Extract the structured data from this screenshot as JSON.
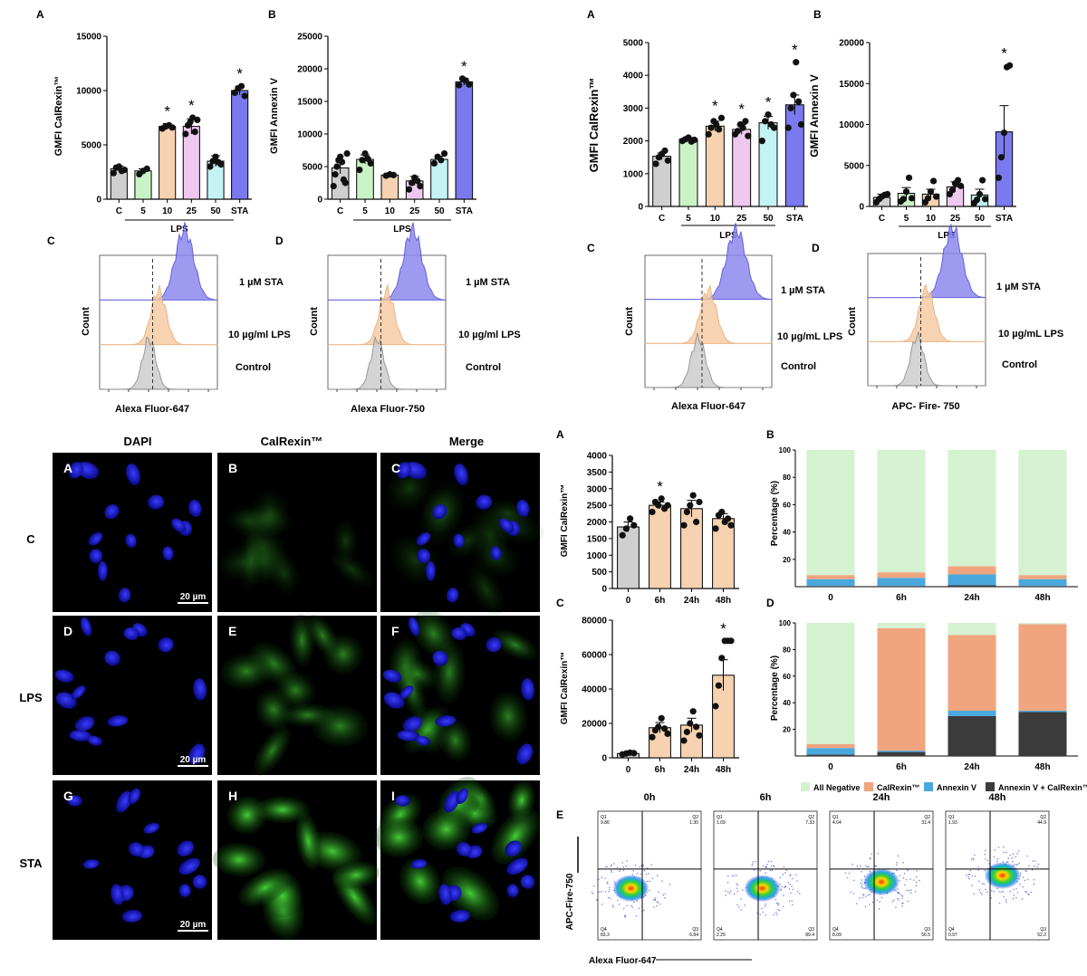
{
  "colors": {
    "c_gray": "#cfcfcf",
    "lps5": "#c9f2c5",
    "lps10": "#f7d2b0",
    "lps25": "#eec8ef",
    "lps50": "#c4f3f3",
    "sta": "#7b79ee",
    "stack_neg": "#d4f1d0",
    "stack_cal": "#f0a57f",
    "stack_annex": "#4aa8dd",
    "stack_double": "#3b3b3b",
    "hist_sta": "#8d89ee",
    "hist_lps": "#f7c99e",
    "hist_ctrl": "#cdcdcd"
  },
  "group_labels": {
    "lps": "LPS",
    "star": "*",
    "sig": "*"
  },
  "chart_data": [
    {
      "id": "p1A",
      "panel": "A",
      "type": "bar",
      "ylabel": "GMFI CalRexin™",
      "ylim": [
        0,
        15000
      ],
      "yticks": [
        "0",
        "5000",
        "10000",
        "15000"
      ],
      "categories": [
        "C",
        "5",
        "10",
        "25",
        "50",
        "STA"
      ],
      "values": [
        2800,
        2600,
        6700,
        6700,
        3500,
        10000
      ],
      "sem": [
        250,
        200,
        250,
        700,
        500,
        400
      ],
      "points": [
        [
          2400,
          2900,
          3000,
          2600,
          2700
        ],
        [
          2300,
          2600,
          2800
        ],
        [
          6500,
          6700,
          6800,
          6600
        ],
        [
          6000,
          6800,
          7100,
          7500,
          6200,
          7300
        ],
        [
          3000,
          3500,
          3900,
          3400,
          3200
        ],
        [
          9800,
          10200,
          10400,
          9500
        ]
      ],
      "significant": [
        false,
        false,
        true,
        true,
        false,
        true
      ]
    },
    {
      "id": "p1B",
      "panel": "B",
      "type": "bar",
      "ylabel": "GMFI Annexin V",
      "ylim": [
        0,
        25000
      ],
      "yticks": [
        "0",
        "5000",
        "10000",
        "15000",
        "20000",
        "25000"
      ],
      "categories": [
        "C",
        "5",
        "10",
        "25",
        "50",
        "STA"
      ],
      "values": [
        4800,
        6100,
        3700,
        2800,
        6100,
        18000
      ],
      "sem": [
        900,
        700,
        200,
        700,
        500,
        500
      ],
      "points": [
        [
          2000,
          3800,
          5000,
          6000,
          6500,
          5700,
          3000,
          2500,
          7000
        ],
        [
          4500,
          6000,
          7000,
          6200,
          5500
        ],
        [
          3600,
          3800,
          3700
        ],
        [
          1500,
          2500,
          3300,
          2800,
          2000
        ],
        [
          5500,
          6500,
          6000,
          7000
        ],
        [
          17500,
          18500,
          18200,
          17600
        ]
      ],
      "significant": [
        false,
        false,
        false,
        false,
        false,
        true
      ]
    },
    {
      "id": "p2A",
      "panel": "A",
      "type": "bar",
      "ylabel": "GMFI CalRexin™",
      "ylim": [
        0,
        5000
      ],
      "yticks": [
        "0",
        "1000",
        "2000",
        "3000",
        "4000",
        "5000"
      ],
      "categories": [
        "C",
        "5",
        "10",
        "25",
        "50",
        "STA"
      ],
      "values": [
        1530,
        2050,
        2450,
        2350,
        2550,
        3100
      ],
      "sem": [
        100,
        50,
        150,
        150,
        200,
        300
      ],
      "points": [
        [
          1300,
          1500,
          1600,
          1700,
          1400
        ],
        [
          2000,
          2050,
          2100,
          1980,
          2030
        ],
        [
          2200,
          2400,
          2600,
          2500,
          2350,
          2700
        ],
        [
          2200,
          2300,
          2500,
          2400,
          2600,
          2150
        ],
        [
          2000,
          2600,
          2800,
          2500,
          2400
        ],
        [
          2400,
          3000,
          3400,
          4400,
          3200,
          2500
        ]
      ],
      "significant": [
        false,
        false,
        true,
        true,
        true,
        true
      ]
    },
    {
      "id": "p2B",
      "panel": "B",
      "type": "bar",
      "ylabel": "GMFI Annexin V",
      "ylim": [
        0,
        20000
      ],
      "yticks": [
        "0",
        "5000",
        "10000",
        "15000",
        "20000"
      ],
      "categories": [
        "C",
        "5",
        "10",
        "25",
        "50",
        "STA"
      ],
      "values": [
        1100,
        1600,
        1500,
        2400,
        1400,
        9100
      ],
      "sem": [
        400,
        700,
        600,
        600,
        700,
        3200
      ],
      "points": [
        [
          500,
          900,
          1200,
          1400,
          1500
        ],
        [
          600,
          900,
          1800,
          3500,
          1000
        ],
        [
          500,
          1000,
          1800,
          3100,
          1200
        ],
        [
          1500,
          2000,
          2800,
          3200,
          2500
        ],
        [
          400,
          800,
          1500,
          3200,
          900
        ],
        [
          3500,
          6000,
          9000,
          17000,
          17200
        ]
      ],
      "significant": [
        false,
        false,
        false,
        false,
        false,
        true
      ]
    },
    {
      "id": "p3A",
      "panel": "A",
      "type": "bar",
      "ylabel": "GMFI CalRexin™",
      "ylim": [
        0,
        4000
      ],
      "yticks": [
        "0",
        "500",
        "1000",
        "1500",
        "2000",
        "2500",
        "3000",
        "3500",
        "4000"
      ],
      "categories": [
        "0",
        "6h",
        "24h",
        "48h"
      ],
      "values": [
        1850,
        2500,
        2400,
        2100
      ],
      "sem": [
        150,
        100,
        250,
        150
      ],
      "points": [
        [
          1600,
          1800,
          2100,
          1900
        ],
        [
          2300,
          2600,
          2500,
          2700,
          2400,
          2500
        ],
        [
          1900,
          2300,
          2500,
          2800,
          2000,
          2600
        ],
        [
          1800,
          2200,
          2300,
          2000,
          2100,
          1900
        ]
      ],
      "significant": [
        false,
        true,
        false,
        false
      ]
    },
    {
      "id": "p3C",
      "panel": "C",
      "type": "bar",
      "ylabel": "GMFI CalRexin™",
      "ylim": [
        0,
        80000
      ],
      "yticks": [
        "0",
        "20000",
        "40000",
        "60000",
        "80000"
      ],
      "categories": [
        "0",
        "6h",
        "24h",
        "48h"
      ],
      "values": [
        2500,
        17500,
        19000,
        48000
      ],
      "sem": [
        500,
        3000,
        4000,
        9000
      ],
      "points": [
        [
          2000,
          2500,
          3000,
          2700
        ],
        [
          12000,
          16000,
          18000,
          23000,
          17000,
          14000
        ],
        [
          10000,
          15000,
          20000,
          27000,
          18000,
          13000
        ],
        [
          30000,
          42000,
          58000,
          68000,
          68000,
          68000
        ]
      ],
      "significant": [
        false,
        false,
        false,
        true
      ]
    },
    {
      "id": "p3B",
      "panel": "B",
      "type": "stacked-bar",
      "ylabel": "Percentage (%)",
      "ylim": [
        0,
        100
      ],
      "yticks": [
        "20",
        "40",
        "60",
        "80",
        "100"
      ],
      "categories": [
        "0",
        "6h",
        "24h",
        "48h"
      ],
      "series": [
        {
          "name": "Annexin V + CalRexin™",
          "values": [
            0.5,
            0.5,
            1,
            0.5
          ]
        },
        {
          "name": "Annexin V",
          "values": [
            5,
            6,
            8,
            5
          ]
        },
        {
          "name": "CalRexin™",
          "values": [
            3,
            4,
            6,
            3
          ]
        },
        {
          "name": "All Negative",
          "values": [
            91.5,
            89.5,
            85,
            91.5
          ]
        }
      ]
    },
    {
      "id": "p3D",
      "panel": "D",
      "type": "stacked-bar",
      "ylabel": "Percentage (%)",
      "ylim": [
        0,
        100
      ],
      "yticks": [
        "20",
        "40",
        "60",
        "80",
        "100"
      ],
      "categories": [
        "0",
        "6h",
        "24h",
        "48h"
      ],
      "series": [
        {
          "name": "Annexin V + CalRexin™",
          "values": [
            1,
            3,
            30,
            33
          ]
        },
        {
          "name": "Annexin V",
          "values": [
            5,
            1,
            4,
            1
          ]
        },
        {
          "name": "CalRexin™",
          "values": [
            3,
            92,
            57,
            65
          ]
        },
        {
          "name": "All Negative",
          "values": [
            91,
            4,
            9,
            1
          ]
        }
      ]
    }
  ],
  "histograms": [
    {
      "panel": "C",
      "xlabel": "Alexa Fluor-647",
      "ylabel": "Count",
      "labels": [
        "1 µM STA",
        "10 µg/ml LPS",
        "Control"
      ]
    },
    {
      "panel": "D",
      "xlabel": "Alexa Fluor-750",
      "ylabel": "Count",
      "labels": [
        "1 µM STA",
        "10 µg/ml LPS",
        "Control"
      ]
    },
    {
      "panel": "C",
      "xlabel": "Alexa Fluor-647",
      "ylabel": "Count",
      "labels": [
        "1 µM STA",
        "10 µg/mL LPS",
        "Control"
      ]
    },
    {
      "panel": "D",
      "xlabel": "APC- Fire- 750",
      "ylabel": "Count",
      "labels": [
        "1 µM STA",
        "10 µg/mL LPS",
        "Control"
      ]
    }
  ],
  "legend": [
    "All Negative",
    "CalRexin™",
    "Annexin V",
    "Annexin V + CalRexin™"
  ],
  "microscopy": {
    "columns": [
      "DAPI",
      "CalRexin™",
      "Merge"
    ],
    "rows": [
      "C",
      "LPS",
      "STA"
    ],
    "tiles": [
      "A",
      "B",
      "C",
      "D",
      "E",
      "F",
      "G",
      "H",
      "I"
    ],
    "scale_bar": "20 µm"
  },
  "flow": {
    "panel": "E",
    "titles": [
      "0h",
      "6h",
      "24h",
      "48h"
    ],
    "xlabel": "Alexa Fluor-647",
    "ylabel": "APC-Fire-750",
    "quadrants": [
      {
        "q1": "Q1",
        "q1v": "9.86",
        "q2": "Q2",
        "q2v": "1.30",
        "q3": "Q3",
        "q3v": "6.84",
        "q4": "Q4",
        "q4v": "83.3"
      },
      {
        "q1": "Q1",
        "q1v": "1.09",
        "q2": "Q2",
        "q2v": "7.33",
        "q3": "Q3",
        "q3v": "89.4",
        "q4": "Q4",
        "q4v": "2.25"
      },
      {
        "q1": "Q1",
        "q1v": "4.04",
        "q2": "Q2",
        "q2v": "31.4",
        "q3": "Q3",
        "q3v": "56.5",
        "q4": "Q4",
        "q4v": "8.09"
      },
      {
        "q1": "Q1",
        "q1v": "1.93",
        "q2": "Q2",
        "q2v": "44.9",
        "q3": "Q3",
        "q3v": "52.2",
        "q4": "Q4",
        "q4v": "0.97"
      }
    ]
  }
}
